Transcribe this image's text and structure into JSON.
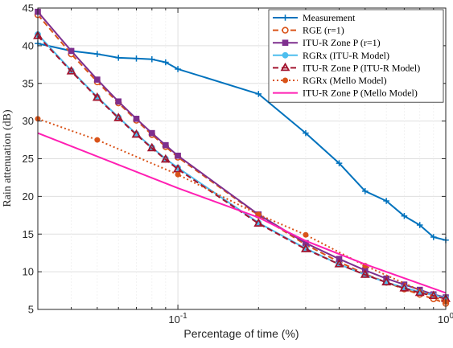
{
  "chart_data": {
    "type": "line",
    "xlabel": "Percentage of time (%)",
    "ylabel": "Rain attenuation (dB)",
    "xscale": "log",
    "xlim": [
      0.03,
      1
    ],
    "ylim": [
      5,
      45
    ],
    "x_ticks": [
      0.1,
      1
    ],
    "x_tick_labels": [
      {
        "base": "10",
        "exp": "-1"
      },
      {
        "base": "10",
        "exp": "0"
      }
    ],
    "y_ticks": [
      5,
      10,
      15,
      20,
      25,
      30,
      35,
      40,
      45
    ],
    "grid": true,
    "legend_position": "top-right",
    "series": [
      {
        "name": "Measurement",
        "color": "#0072BD",
        "style": "solid",
        "marker": "plus",
        "x": [
          0.03,
          0.04,
          0.05,
          0.06,
          0.07,
          0.08,
          0.09,
          0.1,
          0.2,
          0.3,
          0.4,
          0.5,
          0.6,
          0.7,
          0.8,
          0.9,
          1
        ],
        "y": [
          40.3,
          39.3,
          38.9,
          38.4,
          38.3,
          38.2,
          37.8,
          36.9,
          33.6,
          28.4,
          24.4,
          20.7,
          19.4,
          17.4,
          16.2,
          14.6,
          14.2
        ]
      },
      {
        "name": "RGE (r=1)",
        "color": "#D95319",
        "style": "dashed",
        "marker": "circle-open",
        "x": [
          0.03,
          0.04,
          0.05,
          0.06,
          0.07,
          0.08,
          0.09,
          0.1,
          0.2,
          0.3,
          0.4,
          0.5,
          0.6,
          0.7,
          0.8,
          0.9,
          1
        ],
        "y": [
          44.1,
          38.9,
          35.2,
          32.4,
          30.1,
          28.2,
          26.6,
          25.2,
          17.5,
          13.6,
          11.3,
          9.7,
          8.6,
          7.7,
          7.0,
          6.4,
          5.8
        ]
      },
      {
        "name": "ITU-R Zone P (r=1)",
        "color": "#7E2F8E",
        "style": "solid",
        "marker": "square",
        "x": [
          0.03,
          0.04,
          0.05,
          0.06,
          0.07,
          0.08,
          0.09,
          0.1,
          0.2,
          0.3,
          0.4,
          0.5,
          0.6,
          0.7,
          0.8,
          0.9,
          1
        ],
        "y": [
          44.5,
          39.3,
          35.5,
          32.6,
          30.3,
          28.4,
          26.8,
          25.4,
          17.6,
          13.8,
          11.7,
          10.2,
          9.1,
          8.3,
          7.6,
          7.0,
          6.6
        ]
      },
      {
        "name": "RGRx (ITU-R Model)",
        "color": "#4DBEEE",
        "style": "solid",
        "marker": "circle-filled",
        "x": [
          0.03,
          0.04,
          0.05,
          0.06,
          0.07,
          0.08,
          0.09,
          0.1,
          0.2,
          0.3,
          0.4,
          0.5,
          0.6,
          0.7,
          0.8,
          0.9,
          1
        ],
        "y": [
          41.5,
          36.7,
          33.2,
          30.5,
          28.3,
          26.5,
          25.0,
          23.8,
          16.5,
          13.1,
          11.0,
          9.6,
          8.6,
          7.9,
          7.3,
          6.9,
          6.5
        ]
      },
      {
        "name": "ITU-R Zone P (ITU-R Model)",
        "color": "#A2142F",
        "style": "dashed",
        "marker": "triangle",
        "x": [
          0.03,
          0.04,
          0.05,
          0.06,
          0.07,
          0.08,
          0.09,
          0.1,
          0.2,
          0.3,
          0.4,
          0.5,
          0.6,
          0.7,
          0.8,
          0.9,
          1
        ],
        "y": [
          41.3,
          36.6,
          33.1,
          30.4,
          28.2,
          26.4,
          24.9,
          23.6,
          16.4,
          13.0,
          11.0,
          9.6,
          8.6,
          7.8,
          7.2,
          6.8,
          6.4
        ]
      },
      {
        "name": "RGRx (Mello Model)",
        "color": "#D95319",
        "style": "dotted",
        "marker": "dot-filled",
        "x": [
          0.03,
          0.05,
          0.1,
          0.2,
          0.3,
          0.5,
          1
        ],
        "y": [
          30.3,
          27.5,
          22.9,
          17.6,
          14.9,
          10.8,
          6.0
        ]
      },
      {
        "name": "ITU-R Zone P (Mello Model)",
        "color": "#FF1FB3",
        "style": "solid",
        "marker": "none",
        "x": [
          0.03,
          0.1,
          0.2,
          0.3,
          0.5,
          1
        ],
        "y": [
          28.4,
          21.1,
          17.2,
          14.1,
          11.0,
          7.2
        ]
      }
    ]
  }
}
